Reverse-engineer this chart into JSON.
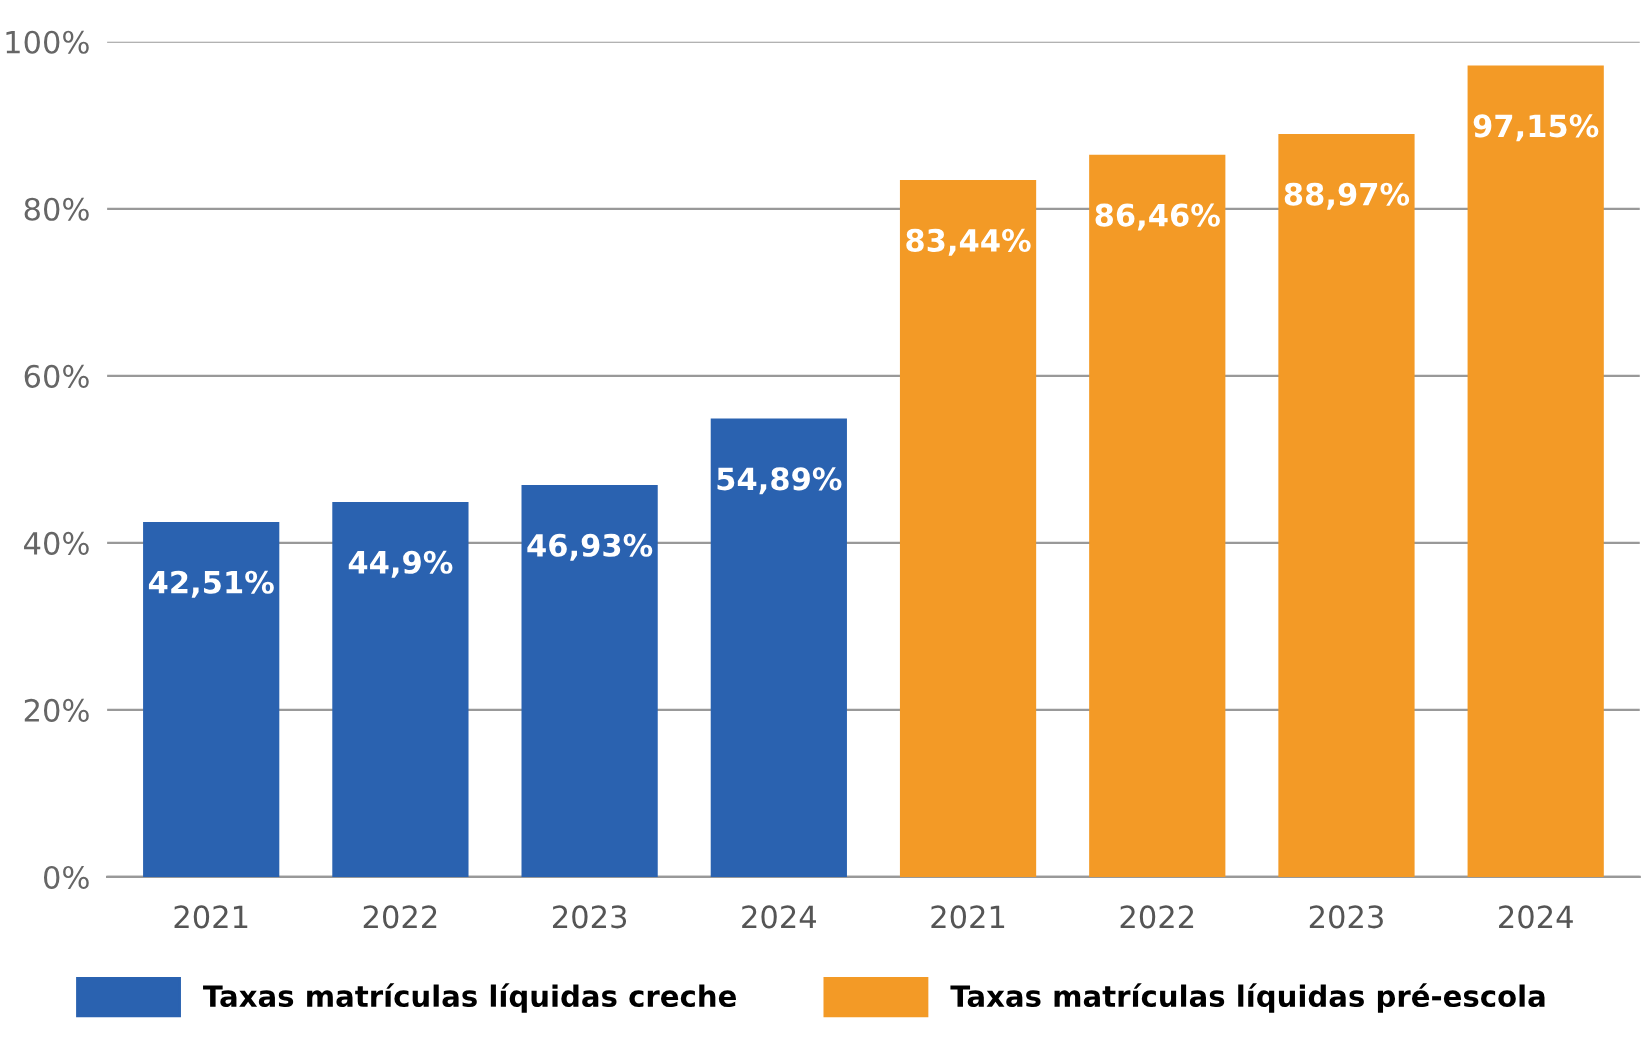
{
  "chart_data": {
    "type": "bar",
    "categories": [
      "2021",
      "2022",
      "2023",
      "2024",
      "2021",
      "2022",
      "2023",
      "2024"
    ],
    "series": [
      {
        "name": "Taxas matrículas líquidas creche",
        "color": "#2a62b0",
        "values": [
          42.51,
          44.9,
          46.93,
          54.89,
          null,
          null,
          null,
          null
        ],
        "value_labels": [
          "42,51%",
          "44,9%",
          "46,93%",
          "54,89%",
          null,
          null,
          null,
          null
        ]
      },
      {
        "name": "Taxas matrículas líquidas pré-escola",
        "color": "#f39a26",
        "values": [
          null,
          null,
          null,
          null,
          83.44,
          86.46,
          88.97,
          97.15
        ],
        "value_labels": [
          null,
          null,
          null,
          null,
          "83,44%",
          "86,46%",
          "88,97%",
          "97,15%"
        ]
      }
    ],
    "ylim": [
      0,
      100
    ],
    "yticks": [
      {
        "value": 0,
        "label": "0%"
      },
      {
        "value": 20,
        "label": "20%"
      },
      {
        "value": 40,
        "label": "40%"
      },
      {
        "value": 60,
        "label": "60%"
      },
      {
        "value": 80,
        "label": "80%"
      },
      {
        "value": 100,
        "label": "100%"
      }
    ],
    "grid": "y",
    "legend": "bottom"
  }
}
